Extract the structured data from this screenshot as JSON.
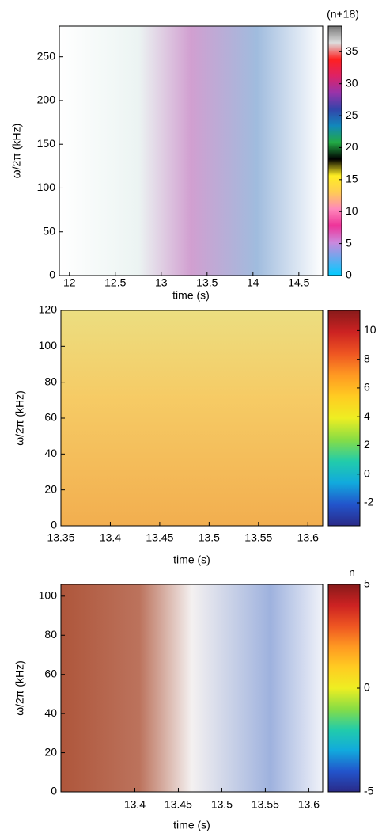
{
  "chart_data": [
    {
      "type": "heatmap",
      "xlabel": "time (s)",
      "ylabel": "ω/2π (kHz)",
      "xlim": [
        11.89,
        14.76
      ],
      "ylim": [
        0,
        285
      ],
      "xticks": [
        12,
        12.5,
        13,
        13.5,
        14,
        14.5
      ],
      "yticks": [
        0,
        50,
        100,
        150,
        200,
        250
      ],
      "colorbar": {
        "label": "(n+18)",
        "lim": [
          0,
          39
        ],
        "ticks": [
          0,
          5,
          10,
          15,
          20,
          25,
          30,
          35
        ],
        "colors": [
          "#00ccff",
          "#66aaee",
          "#cc88dd",
          "#ee3399",
          "#ff88bb",
          "#ffcc55",
          "#ffee22",
          "#000000",
          "#22aa44",
          "#1188bb",
          "#3344aa",
          "#9933aa",
          "#dd2266",
          "#ff2020",
          "#dddddd",
          "#777777"
        ]
      }
    },
    {
      "type": "heatmap",
      "xlabel": "time (s)",
      "ylabel": "ω/2π (kHz)",
      "xlim": [
        13.35,
        13.615
      ],
      "ylim": [
        0,
        120
      ],
      "xticks": [
        13.35,
        13.4,
        13.45,
        13.5,
        13.55,
        13.6
      ],
      "yticks": [
        0,
        20,
        40,
        60,
        80,
        100,
        120
      ],
      "colorbar": {
        "lim": [
          -3.6,
          11.4
        ],
        "ticks": [
          -2,
          0,
          2,
          4,
          6,
          8,
          10
        ],
        "colors": [
          "#2a2a88",
          "#2255cc",
          "#11aadd",
          "#22ccaa",
          "#88dd44",
          "#eeee22",
          "#ffcc22",
          "#ff9922",
          "#ee5522",
          "#cc2222",
          "#881a1a"
        ]
      }
    },
    {
      "type": "heatmap",
      "xlabel": "time (s)",
      "ylabel": "ω/2π (kHz)",
      "xlim": [
        13.315,
        13.616
      ],
      "ylim": [
        0,
        106
      ],
      "xticks": [
        13.4,
        13.45,
        13.5,
        13.55,
        13.6
      ],
      "yticks": [
        0,
        20,
        40,
        60,
        80,
        100
      ],
      "colorbar": {
        "label": "n",
        "lim": [
          -5,
          5
        ],
        "ticks": [
          -5,
          0,
          5
        ],
        "colors": [
          "#2a2a88",
          "#2255cc",
          "#11aadd",
          "#22ccaa",
          "#88dd44",
          "#eeee22",
          "#ffcc22",
          "#ff9922",
          "#ee5522",
          "#cc2222",
          "#881a1a"
        ]
      }
    }
  ]
}
